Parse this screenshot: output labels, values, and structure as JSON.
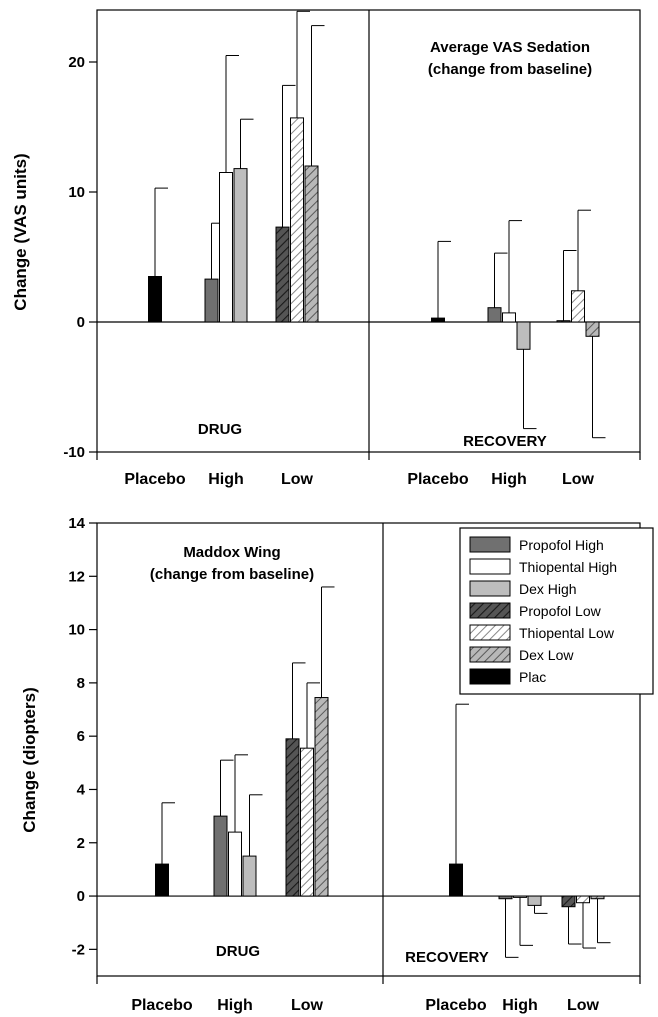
{
  "colors": {
    "propofol_high": "#707070",
    "thiopental_high": "#ffffff",
    "dex_high": "#bdbdbd",
    "propofol_low": "#555555",
    "thiopental_low": "#e6e6e6",
    "dex_low": "#999999",
    "plac": "#000000"
  },
  "legend": [
    "Propofol High",
    "Thiopental High",
    "Dex High",
    "Propofol Low",
    "Thiopental Low",
    "Dex Low",
    "Plac"
  ],
  "chart_data": [
    {
      "type": "bar",
      "title": "Average VAS Sedation",
      "subtitle": "(change from baseline)",
      "ylabel": "Change (VAS units)",
      "ylim": [
        -10,
        24
      ],
      "yticks": [
        -10,
        0,
        10,
        20
      ],
      "panels": [
        "DRUG",
        "RECOVERY"
      ],
      "categories": [
        "Placebo",
        "High",
        "Low"
      ],
      "series": [
        {
          "name": "Plac",
          "key": "plac",
          "values": {
            "DRUG": {
              "Placebo": 3.5
            },
            "RECOVERY": {
              "Placebo": 0.3
            }
          },
          "errors": {
            "DRUG": {
              "Placebo": 6.8
            },
            "RECOVERY": {
              "Placebo": 5.9
            }
          }
        },
        {
          "name": "Propofol High",
          "key": "propofol_high",
          "values": {
            "DRUG": {
              "High": 3.3
            },
            "RECOVERY": {
              "High": 1.1
            }
          },
          "errors": {
            "DRUG": {
              "High": 4.3
            },
            "RECOVERY": {
              "High": 4.2
            }
          }
        },
        {
          "name": "Thiopental High",
          "key": "thiopental_high",
          "values": {
            "DRUG": {
              "High": 11.5
            },
            "RECOVERY": {
              "High": 0.7
            }
          },
          "errors": {
            "DRUG": {
              "High": 9.0
            },
            "RECOVERY": {
              "High": 7.1
            }
          }
        },
        {
          "name": "Dex High",
          "key": "dex_high",
          "values": {
            "DRUG": {
              "High": 11.8
            },
            "RECOVERY": {
              "High": -2.1
            }
          },
          "errors": {
            "DRUG": {
              "High": 3.8
            },
            "RECOVERY": {
              "High": 6.1
            }
          }
        },
        {
          "name": "Propofol Low",
          "key": "propofol_low",
          "values": {
            "DRUG": {
              "Low": 7.3
            },
            "RECOVERY": {
              "Low": 0.1
            }
          },
          "errors": {
            "DRUG": {
              "Low": 10.9
            },
            "RECOVERY": {
              "Low": 5.4
            }
          }
        },
        {
          "name": "Thiopental Low",
          "key": "thiopental_low",
          "values": {
            "DRUG": {
              "Low": 15.7
            },
            "RECOVERY": {
              "Low": 2.4
            }
          },
          "errors": {
            "DRUG": {
              "Low": 8.2
            },
            "RECOVERY": {
              "Low": 6.2
            }
          }
        },
        {
          "name": "Dex Low",
          "key": "dex_low",
          "values": {
            "DRUG": {
              "Low": 12.0
            },
            "RECOVERY": {
              "Low": -1.1
            }
          },
          "errors": {
            "DRUG": {
              "Low": 10.8
            },
            "RECOVERY": {
              "Low": 7.8
            }
          }
        }
      ]
    },
    {
      "type": "bar",
      "title": "Maddox Wing",
      "subtitle": "(change from baseline)",
      "ylabel": "Change (diopters)",
      "ylim": [
        -3,
        14
      ],
      "yticks": [
        -2,
        0,
        2,
        4,
        6,
        8,
        10,
        12,
        14
      ],
      "panels": [
        "DRUG",
        "RECOVERY"
      ],
      "categories": [
        "Placebo",
        "High",
        "Low"
      ],
      "series": [
        {
          "name": "Plac",
          "key": "plac",
          "values": {
            "DRUG": {
              "Placebo": 1.2
            },
            "RECOVERY": {
              "Placebo": 1.2
            }
          },
          "errors": {
            "DRUG": {
              "Placebo": 2.3
            },
            "RECOVERY": {
              "Placebo": 6.0
            }
          }
        },
        {
          "name": "Propofol High",
          "key": "propofol_high",
          "values": {
            "DRUG": {
              "High": 3.0
            },
            "RECOVERY": {
              "High": -0.1
            }
          },
          "errors": {
            "DRUG": {
              "High": 2.1
            },
            "RECOVERY": {
              "High": 2.2
            }
          }
        },
        {
          "name": "Thiopental High",
          "key": "thiopental_high",
          "values": {
            "DRUG": {
              "High": 2.4
            },
            "RECOVERY": {
              "High": -0.05
            }
          },
          "errors": {
            "DRUG": {
              "High": 2.9
            },
            "RECOVERY": {
              "High": 1.8
            }
          }
        },
        {
          "name": "Dex High",
          "key": "dex_high",
          "values": {
            "DRUG": {
              "High": 1.5
            },
            "RECOVERY": {
              "High": -0.35
            }
          },
          "errors": {
            "DRUG": {
              "High": 2.3
            },
            "RECOVERY": {
              "High": 0.3
            }
          }
        },
        {
          "name": "Propofol Low",
          "key": "propofol_low",
          "values": {
            "DRUG": {
              "Low": 5.9
            },
            "RECOVERY": {
              "Low": -0.4
            }
          },
          "errors": {
            "DRUG": {
              "Low": 2.85
            },
            "RECOVERY": {
              "Low": 1.4
            }
          }
        },
        {
          "name": "Thiopental Low",
          "key": "thiopental_low",
          "values": {
            "DRUG": {
              "Low": 5.55
            },
            "RECOVERY": {
              "Low": -0.25
            }
          },
          "errors": {
            "DRUG": {
              "Low": 2.45
            },
            "RECOVERY": {
              "Low": 1.7
            }
          }
        },
        {
          "name": "Dex Low",
          "key": "dex_low",
          "values": {
            "DRUG": {
              "Low": 7.45
            },
            "RECOVERY": {
              "Low": -0.1
            }
          },
          "errors": {
            "DRUG": {
              "Low": 4.15
            },
            "RECOVERY": {
              "Low": 1.65
            }
          }
        }
      ]
    }
  ]
}
